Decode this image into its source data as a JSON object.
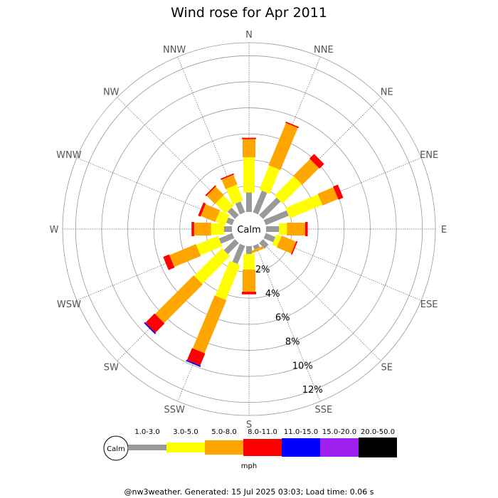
{
  "chart_data": {
    "type": "windrose",
    "title": "Wind rose for Apr 2011",
    "directions": [
      "N",
      "NNE",
      "NE",
      "ENE",
      "E",
      "ESE",
      "SE",
      "SSE",
      "S",
      "SSW",
      "SW",
      "WSW",
      "W",
      "WNW",
      "NW",
      "NNW"
    ],
    "radial_ticks": [
      "2%",
      "4%",
      "6%",
      "8%",
      "10%",
      "12%"
    ],
    "radial_max": 13,
    "calm_label": "Calm",
    "speed_bins": [
      {
        "label": "1.0-3.0",
        "color": "#999999"
      },
      {
        "label": "3.0-5.0",
        "color": "#ffff00"
      },
      {
        "label": "5.0-8.0",
        "color": "#ffa500"
      },
      {
        "label": "8.0-11.0",
        "color": "#ff0000"
      },
      {
        "label": "11.0-15.0",
        "color": "#0000ff"
      },
      {
        "label": "15.0-20.0",
        "color": "#a020f0"
      },
      {
        "label": "20.0-50.0",
        "color": "#000000"
      }
    ],
    "units": "mph",
    "cumulative_percent": [
      [
        1.5,
        4.2,
        5.6,
        5.7,
        5.7,
        5.7,
        5.7
      ],
      [
        1.8,
        3.8,
        7.3,
        7.4,
        7.4,
        7.4,
        7.4
      ],
      [
        1.9,
        4.0,
        5.8,
        6.3,
        6.3,
        6.3,
        6.3
      ],
      [
        1.9,
        4.6,
        5.9,
        6.3,
        6.3,
        6.3,
        6.3
      ],
      [
        1.0,
        1.6,
        3.0,
        3.2,
        3.2,
        3.2,
        3.2
      ],
      [
        0.8,
        1.2,
        2.4,
        2.5,
        2.5,
        2.5,
        2.5
      ],
      [
        0.6,
        0.6,
        0.6,
        0.6,
        0.6,
        0.6,
        0.6
      ],
      [
        0.3,
        0.3,
        0.5,
        0.5,
        0.5,
        0.5,
        0.5
      ],
      [
        0.6,
        1.8,
        3.5,
        3.7,
        3.7,
        3.7,
        3.7
      ],
      [
        1.5,
        4.4,
        8.8,
        9.8,
        9.9,
        9.9,
        9.9
      ],
      [
        1.2,
        4.2,
        8.4,
        9.4,
        9.5,
        9.5,
        9.5
      ],
      [
        1.1,
        2.9,
        5.1,
        5.6,
        5.6,
        5.6,
        5.6
      ],
      [
        0.6,
        1.6,
        2.9,
        3.1,
        3.1,
        3.1,
        3.1
      ],
      [
        0.5,
        1.3,
        2.5,
        2.7,
        2.7,
        2.7,
        2.7
      ],
      [
        0.8,
        1.9,
        2.8,
        2.9,
        2.9,
        2.9,
        2.9
      ],
      [
        0.9,
        2.2,
        3.0,
        3.1,
        3.1,
        3.1,
        3.1
      ]
    ]
  },
  "footer": "@nw3weather. Generated: 15 Jul 2025 03:03; Load time: 0.06 s"
}
